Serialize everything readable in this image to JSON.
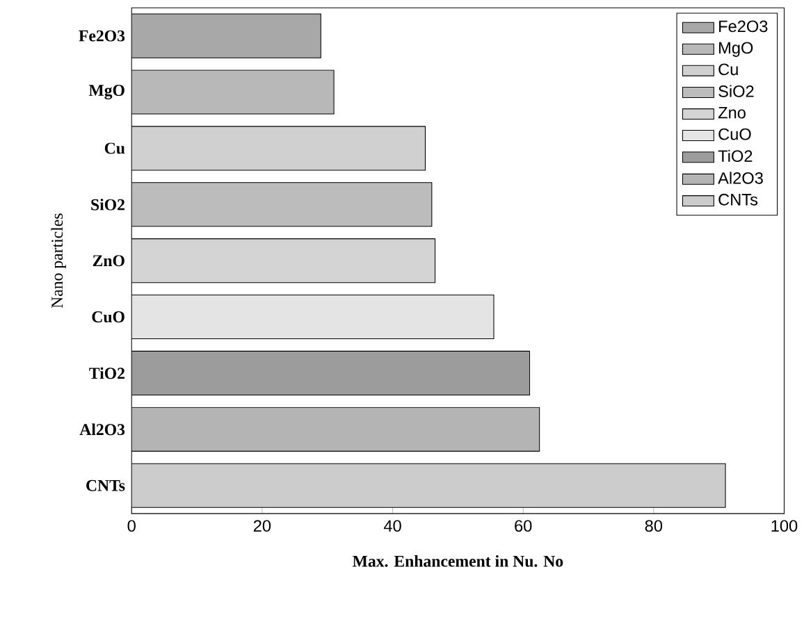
{
  "chart_data": {
    "type": "bar",
    "orientation": "horizontal",
    "xlabel": "Max. Enhancement in Nu. No",
    "ylabel": "Nano particles",
    "categories": [
      "Fe2O3",
      "MgO",
      "Cu",
      "SiO2",
      "ZnO",
      "CuO",
      "TiO2",
      "Al2O3",
      "CNTs"
    ],
    "series": [
      {
        "name": "Fe2O3",
        "color": "#a8a8a8",
        "values": [
          29,
          null,
          null,
          null,
          null,
          null,
          null,
          null,
          null
        ]
      },
      {
        "name": "MgO",
        "color": "#b8b8b8",
        "values": [
          null,
          31,
          null,
          null,
          null,
          null,
          null,
          null,
          null
        ]
      },
      {
        "name": "Cu",
        "color": "#d0d0d0",
        "values": [
          null,
          null,
          45,
          null,
          null,
          null,
          null,
          null,
          null
        ]
      },
      {
        "name": "SiO2",
        "color": "#bcbcbc",
        "values": [
          null,
          null,
          null,
          46,
          null,
          null,
          null,
          null,
          null
        ]
      },
      {
        "name": "Zno",
        "color": "#d4d4d4",
        "values": [
          null,
          null,
          null,
          null,
          46.5,
          null,
          null,
          null,
          null
        ]
      },
      {
        "name": "CuO",
        "color": "#e4e4e4",
        "values": [
          null,
          null,
          null,
          null,
          null,
          55.5,
          null,
          null,
          null
        ]
      },
      {
        "name": "TiO2",
        "color": "#9c9c9c",
        "values": [
          null,
          null,
          null,
          null,
          null,
          null,
          61,
          null,
          null
        ]
      },
      {
        "name": "Al2O3",
        "color": "#b4b4b4",
        "values": [
          null,
          null,
          null,
          null,
          null,
          null,
          null,
          62.5,
          null
        ]
      },
      {
        "name": "CNTs",
        "color": "#cccccc",
        "values": [
          null,
          null,
          null,
          null,
          null,
          null,
          null,
          null,
          91
        ]
      }
    ],
    "xlim": [
      0,
      100
    ],
    "xticks": [
      0,
      20,
      40,
      60,
      80,
      100
    ],
    "legend": "top right"
  }
}
